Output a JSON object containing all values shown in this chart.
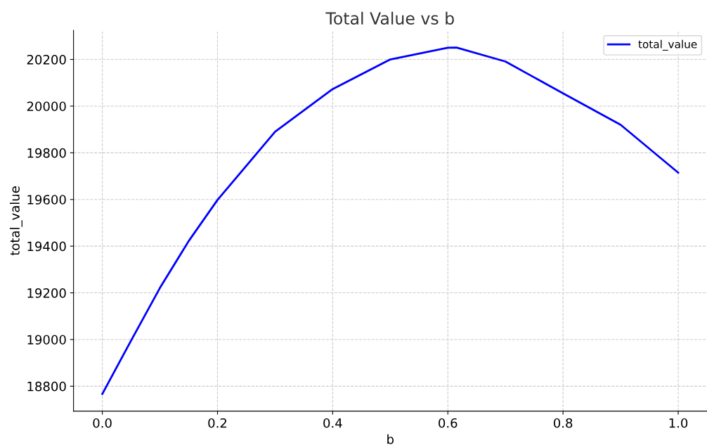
{
  "chart_data": {
    "type": "line",
    "title": "Total Value vs b",
    "xlabel": "b",
    "ylabel": "total_value",
    "x": [
      0.0,
      0.05,
      0.1,
      0.15,
      0.2,
      0.3,
      0.4,
      0.5,
      0.6,
      0.615,
      0.7,
      0.8,
      0.9,
      1.0
    ],
    "series": [
      {
        "name": "total_value",
        "color": "#0000ff",
        "values": [
          18767,
          18996,
          19221,
          19422,
          19598,
          19890,
          20073,
          20200,
          20250,
          20251,
          20191,
          20055,
          19920,
          19715
        ]
      }
    ],
    "xlim": [
      -0.05,
      1.05
    ],
    "xticks": [
      {
        "value": 0.0,
        "label": "0.0"
      },
      {
        "value": 0.2,
        "label": "0.2"
      },
      {
        "value": 0.4,
        "label": "0.4"
      },
      {
        "value": 0.6,
        "label": "0.6"
      },
      {
        "value": 0.8,
        "label": "0.8"
      },
      {
        "value": 1.0,
        "label": "1.0"
      }
    ],
    "ylim": [
      18693,
      20325
    ],
    "yticks": [
      18800,
      19000,
      19200,
      19400,
      19600,
      19800,
      20000,
      20200
    ],
    "grid": true,
    "legend": "top right",
    "marker": "none",
    "line_style": "solid"
  }
}
